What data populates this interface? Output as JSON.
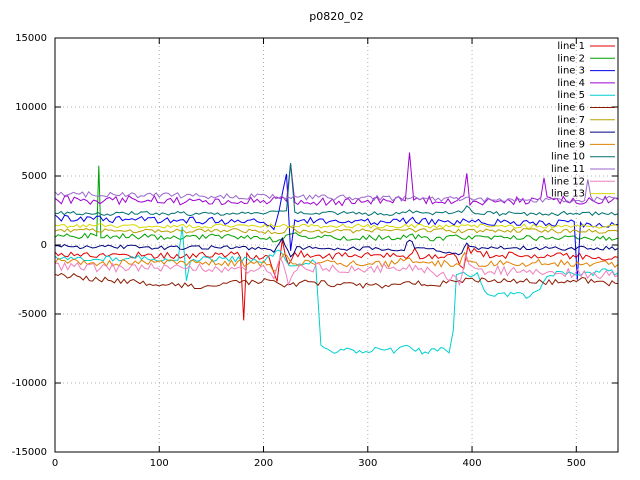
{
  "chart_data": {
    "type": "line",
    "title": "p0820_02",
    "xlabel": "",
    "ylabel": "",
    "xlim": [
      0,
      540
    ],
    "ylim": [
      -15000,
      15000
    ],
    "xticks": [
      0,
      100,
      200,
      300,
      400,
      500
    ],
    "yticks": [
      -15000,
      -10000,
      -5000,
      0,
      5000,
      10000,
      15000
    ],
    "grid": true,
    "legend_position": "top-right",
    "background": "#ffffff",
    "border_color": "#000000",
    "grid_color": "#b0b0b0",
    "series": [
      {
        "name": "line 1",
        "color": "#e00000",
        "noise": 250,
        "points": [
          [
            0,
            -600
          ],
          [
            40,
            -750
          ],
          [
            80,
            -700
          ],
          [
            120,
            -800
          ],
          [
            160,
            -700
          ],
          [
            178,
            -700
          ],
          [
            181,
            -5600
          ],
          [
            184,
            -800
          ],
          [
            205,
            -900
          ],
          [
            213,
            -2800
          ],
          [
            218,
            400
          ],
          [
            224,
            -1500
          ],
          [
            230,
            -600
          ],
          [
            260,
            -800
          ],
          [
            300,
            -700
          ],
          [
            340,
            -900
          ],
          [
            345,
            -200
          ],
          [
            350,
            -800
          ],
          [
            385,
            -700
          ],
          [
            392,
            -1800
          ],
          [
            396,
            -300
          ],
          [
            420,
            -800
          ],
          [
            460,
            -700
          ],
          [
            500,
            -800
          ],
          [
            540,
            -900
          ]
        ]
      },
      {
        "name": "line 2",
        "color": "#00a000",
        "noise": 200,
        "points": [
          [
            0,
            700
          ],
          [
            20,
            650
          ],
          [
            40,
            700
          ],
          [
            42,
            5800
          ],
          [
            44,
            700
          ],
          [
            80,
            600
          ],
          [
            120,
            550
          ],
          [
            160,
            600
          ],
          [
            200,
            550
          ],
          [
            215,
            300
          ],
          [
            225,
            900
          ],
          [
            240,
            500
          ],
          [
            280,
            550
          ],
          [
            320,
            500
          ],
          [
            340,
            700
          ],
          [
            360,
            500
          ],
          [
            400,
            550
          ],
          [
            440,
            500
          ],
          [
            480,
            550
          ],
          [
            520,
            500
          ],
          [
            540,
            500
          ]
        ]
      },
      {
        "name": "line 3",
        "color": "#0000ee",
        "noise": 250,
        "points": [
          [
            0,
            2000
          ],
          [
            40,
            1900
          ],
          [
            80,
            1850
          ],
          [
            120,
            1800
          ],
          [
            160,
            1750
          ],
          [
            200,
            1700
          ],
          [
            210,
            1200
          ],
          [
            215,
            2500
          ],
          [
            222,
            5200
          ],
          [
            226,
            -500
          ],
          [
            230,
            1800
          ],
          [
            260,
            1700
          ],
          [
            300,
            1650
          ],
          [
            340,
            1800
          ],
          [
            380,
            1600
          ],
          [
            400,
            1700
          ],
          [
            440,
            1600
          ],
          [
            480,
            1600
          ],
          [
            498,
            1600
          ],
          [
            501,
            -2400
          ],
          [
            504,
            1500
          ],
          [
            540,
            1500
          ]
        ]
      },
      {
        "name": "line 4",
        "color": "#a000d0",
        "noise": 300,
        "points": [
          [
            0,
            3300
          ],
          [
            40,
            3200
          ],
          [
            80,
            3300
          ],
          [
            120,
            3200
          ],
          [
            160,
            3100
          ],
          [
            200,
            3200
          ],
          [
            222,
            3300
          ],
          [
            226,
            6200
          ],
          [
            230,
            3200
          ],
          [
            260,
            3100
          ],
          [
            300,
            3200
          ],
          [
            336,
            3300
          ],
          [
            340,
            6600
          ],
          [
            344,
            3300
          ],
          [
            380,
            3200
          ],
          [
            392,
            3300
          ],
          [
            395,
            5400
          ],
          [
            398,
            3200
          ],
          [
            440,
            3200
          ],
          [
            466,
            3300
          ],
          [
            469,
            4700
          ],
          [
            472,
            3300
          ],
          [
            500,
            3200
          ],
          [
            540,
            3300
          ]
        ]
      },
      {
        "name": "line 5",
        "color": "#00d0d0",
        "noise": 200,
        "points": [
          [
            0,
            -900
          ],
          [
            40,
            -1000
          ],
          [
            80,
            -950
          ],
          [
            118,
            -1000
          ],
          [
            122,
            1400
          ],
          [
            126,
            -2600
          ],
          [
            130,
            -1000
          ],
          [
            170,
            -1000
          ],
          [
            200,
            -1100
          ],
          [
            215,
            -400
          ],
          [
            225,
            -1500
          ],
          [
            250,
            -1100
          ],
          [
            255,
            -7400
          ],
          [
            265,
            -7700
          ],
          [
            280,
            -7600
          ],
          [
            295,
            -7900
          ],
          [
            310,
            -7500
          ],
          [
            325,
            -7700
          ],
          [
            340,
            -7400
          ],
          [
            355,
            -7800
          ],
          [
            370,
            -7600
          ],
          [
            378,
            -7800
          ],
          [
            382,
            -6000
          ],
          [
            385,
            -2300
          ],
          [
            395,
            -2100
          ],
          [
            405,
            -2200
          ],
          [
            412,
            -3400
          ],
          [
            425,
            -3700
          ],
          [
            440,
            -3500
          ],
          [
            455,
            -3800
          ],
          [
            465,
            -3300
          ],
          [
            472,
            -2200
          ],
          [
            490,
            -2000
          ],
          [
            510,
            -2100
          ],
          [
            525,
            -1900
          ],
          [
            540,
            -2000
          ]
        ]
      },
      {
        "name": "line 6",
        "color": "#8b1a00",
        "noise": 200,
        "points": [
          [
            0,
            -2100
          ],
          [
            30,
            -2400
          ],
          [
            60,
            -2600
          ],
          [
            100,
            -2800
          ],
          [
            140,
            -3000
          ],
          [
            180,
            -2700
          ],
          [
            210,
            -2600
          ],
          [
            220,
            -3100
          ],
          [
            240,
            -2700
          ],
          [
            280,
            -2900
          ],
          [
            320,
            -3000
          ],
          [
            340,
            -2600
          ],
          [
            360,
            -2900
          ],
          [
            400,
            -2500
          ],
          [
            440,
            -2600
          ],
          [
            480,
            -2700
          ],
          [
            500,
            -2500
          ],
          [
            520,
            -2700
          ],
          [
            540,
            -2800
          ]
        ]
      },
      {
        "name": "line 7",
        "color": "#b8a000",
        "noise": 150,
        "points": [
          [
            0,
            1100
          ],
          [
            60,
            1050
          ],
          [
            120,
            1000
          ],
          [
            180,
            1050
          ],
          [
            220,
            900
          ],
          [
            226,
            1400
          ],
          [
            232,
            1000
          ],
          [
            280,
            1000
          ],
          [
            340,
            1100
          ],
          [
            390,
            1000
          ],
          [
            440,
            1050
          ],
          [
            500,
            1000
          ],
          [
            540,
            1000
          ]
        ]
      },
      {
        "name": "line 8",
        "color": "#000080",
        "noise": 150,
        "points": [
          [
            0,
            -100
          ],
          [
            60,
            -150
          ],
          [
            120,
            -200
          ],
          [
            180,
            -150
          ],
          [
            210,
            -400
          ],
          [
            218,
            600
          ],
          [
            226,
            -900
          ],
          [
            232,
            -200
          ],
          [
            280,
            -250
          ],
          [
            335,
            -300
          ],
          [
            340,
            500
          ],
          [
            345,
            -200
          ],
          [
            390,
            -600
          ],
          [
            395,
            200
          ],
          [
            400,
            -250
          ],
          [
            440,
            -200
          ],
          [
            480,
            -250
          ],
          [
            520,
            -200
          ],
          [
            540,
            -250
          ]
        ]
      },
      {
        "name": "line 9",
        "color": "#e08000",
        "noise": 250,
        "points": [
          [
            0,
            -1200
          ],
          [
            40,
            -1300
          ],
          [
            80,
            -1250
          ],
          [
            120,
            -1350
          ],
          [
            160,
            -1300
          ],
          [
            200,
            -1300
          ],
          [
            212,
            -1800
          ],
          [
            220,
            -600
          ],
          [
            228,
            -1600
          ],
          [
            240,
            -1300
          ],
          [
            280,
            -1350
          ],
          [
            320,
            -1400
          ],
          [
            340,
            -900
          ],
          [
            350,
            -1300
          ],
          [
            388,
            -1400
          ],
          [
            393,
            -500
          ],
          [
            398,
            -1400
          ],
          [
            430,
            -1350
          ],
          [
            470,
            -1300
          ],
          [
            510,
            -1350
          ],
          [
            540,
            -1400
          ]
        ]
      },
      {
        "name": "line 10",
        "color": "#007070",
        "noise": 150,
        "points": [
          [
            0,
            2300
          ],
          [
            50,
            2250
          ],
          [
            100,
            2300
          ],
          [
            150,
            2250
          ],
          [
            200,
            2300
          ],
          [
            222,
            2400
          ],
          [
            226,
            5800
          ],
          [
            230,
            2350
          ],
          [
            280,
            2300
          ],
          [
            330,
            2250
          ],
          [
            340,
            2500
          ],
          [
            350,
            2300
          ],
          [
            390,
            2350
          ],
          [
            395,
            2800
          ],
          [
            400,
            2300
          ],
          [
            450,
            2250
          ],
          [
            500,
            2300
          ],
          [
            540,
            2250
          ]
        ]
      },
      {
        "name": "line 11",
        "color": "#9966cc",
        "noise": 200,
        "points": [
          [
            0,
            3700
          ],
          [
            50,
            3650
          ],
          [
            100,
            3600
          ],
          [
            150,
            3550
          ],
          [
            200,
            3500
          ],
          [
            250,
            3450
          ],
          [
            300,
            3400
          ],
          [
            350,
            3350
          ],
          [
            400,
            3300
          ],
          [
            450,
            3250
          ],
          [
            500,
            3250
          ],
          [
            508,
            3300
          ],
          [
            511,
            4600
          ],
          [
            514,
            3300
          ],
          [
            540,
            3400
          ]
        ]
      },
      {
        "name": "line 12",
        "color": "#f080c0",
        "noise": 350,
        "points": [
          [
            0,
            -1500
          ],
          [
            40,
            -1600
          ],
          [
            80,
            -1700
          ],
          [
            120,
            -1600
          ],
          [
            160,
            -1700
          ],
          [
            200,
            -1800
          ],
          [
            210,
            -2600
          ],
          [
            216,
            -700
          ],
          [
            224,
            -2900
          ],
          [
            232,
            -1500
          ],
          [
            260,
            -1700
          ],
          [
            300,
            -1800
          ],
          [
            340,
            -1500
          ],
          [
            360,
            -1800
          ],
          [
            388,
            -2600
          ],
          [
            394,
            -900
          ],
          [
            400,
            -1800
          ],
          [
            440,
            -1900
          ],
          [
            480,
            -2000
          ],
          [
            520,
            -2100
          ],
          [
            540,
            -2200
          ]
        ]
      },
      {
        "name": "line 13",
        "color": "#d8d800",
        "noise": 150,
        "points": [
          [
            0,
            1400
          ],
          [
            60,
            1380
          ],
          [
            120,
            1350
          ],
          [
            180,
            1400
          ],
          [
            240,
            1350
          ],
          [
            300,
            1380
          ],
          [
            360,
            1350
          ],
          [
            420,
            1380
          ],
          [
            480,
            1350
          ],
          [
            540,
            1360
          ]
        ]
      }
    ]
  }
}
